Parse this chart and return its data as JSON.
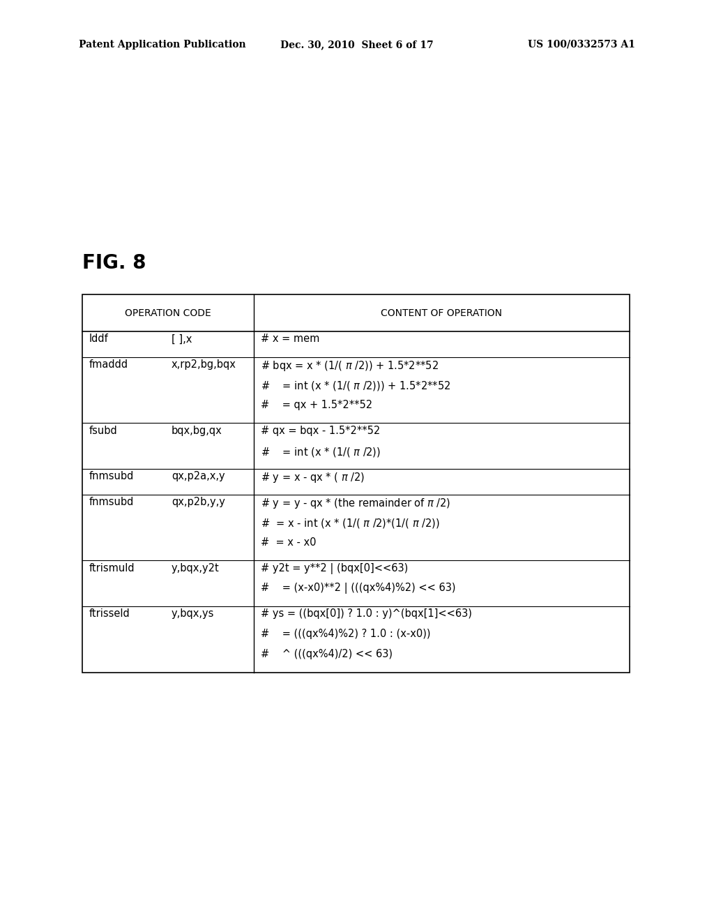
{
  "background_color": "#ffffff",
  "header_left": "Patent Application Publication",
  "header_mid": "Dec. 30, 2010  Sheet 6 of 17",
  "header_right": "US 100/0332573 A1",
  "fig_label": "FIG. 8",
  "col1_header": "OPERATION CODE",
  "col2_header": "CONTENT OF OPERATION",
  "table_rows": [
    {
      "op1": "lddf",
      "op2": "[ ],x",
      "content_lines": [
        "# x = mem"
      ]
    },
    {
      "op1": "fmaddd",
      "op2": "x,rp2,bg,bqx",
      "content_lines": [
        "# bqx = x * (1/( π /2)) + 1.5*2**52",
        "#    = int (x * (1/( π /2))) + 1.5*2**52",
        "#    = qx + 1.5*2**52"
      ]
    },
    {
      "op1": "fsubd",
      "op2": "bqx,bg,qx",
      "content_lines": [
        "# qx = bqx - 1.5*2**52",
        "#    = int (x * (1/( π /2))"
      ]
    },
    {
      "op1": "fnmsubd",
      "op2": "qx,p2a,x,y",
      "content_lines": [
        "# y = x - qx * ( π /2)"
      ]
    },
    {
      "op1": "fnmsubd",
      "op2": "qx,p2b,y,y",
      "content_lines": [
        "# y = y - qx * (the remainder of π /2)",
        "#  = x - int (x * (1/( π /2)*(1/( π /2))",
        "#  = x - x0"
      ]
    },
    {
      "op1": "ftrismuld",
      "op2": "y,bqx,y2t",
      "content_lines": [
        "# y2t = y**2 | (bqx[0]<<63)",
        "#    = (x-x0)**2 | (((qx%4)%2) << 63)"
      ]
    },
    {
      "op1": "ftrisseld",
      "op2": "y,bqx,ys",
      "content_lines": [
        "# ys = ((bqx[0]) ? 1.0 : y)^(bqx[1]<<63)",
        "#    = (((qx%4)%2) ? 1.0 : (x-x0))",
        "#    ^ (((qx%4)/2) << 63)"
      ]
    }
  ],
  "font_size_body": 10.5,
  "font_size_fig": 20,
  "font_size_header": 10
}
